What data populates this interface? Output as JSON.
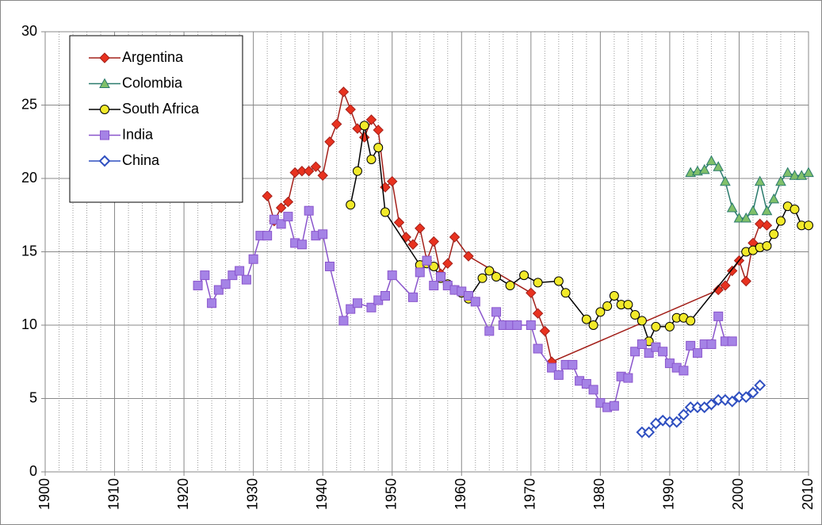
{
  "chart_data": {
    "type": "line",
    "xlim": [
      1900,
      2010
    ],
    "xticks": [
      1900,
      1910,
      1920,
      1930,
      1940,
      1950,
      1960,
      1970,
      1980,
      1990,
      2000,
      2010
    ],
    "ylim": [
      0,
      30
    ],
    "yticks": [
      0,
      5,
      10,
      15,
      20,
      25,
      30
    ],
    "grid": true,
    "legend": "upper left",
    "series": [
      {
        "name": "Argentina",
        "color": "#a3201a",
        "marker": "diamond",
        "marker_color": "#e8321f",
        "x": [
          1932,
          1933,
          1934,
          1935,
          1936,
          1937,
          1938,
          1939,
          1940,
          1941,
          1942,
          1943,
          1944,
          1945,
          1946,
          1947,
          1948,
          1949,
          1950,
          1951,
          1952,
          1953,
          1954,
          1955,
          1956,
          1957,
          1958,
          1959,
          1961,
          1970,
          1971,
          1972,
          1973,
          1997,
          1998,
          1999,
          2000,
          2001,
          2002,
          2003,
          2004
        ],
        "values": [
          18.8,
          17.1,
          18.0,
          18.4,
          20.4,
          20.5,
          20.5,
          20.8,
          20.2,
          22.5,
          23.7,
          25.9,
          24.7,
          23.4,
          22.8,
          24.0,
          23.3,
          19.4,
          19.8,
          17.0,
          16.0,
          15.5,
          16.6,
          14.4,
          15.7,
          13.5,
          14.2,
          16.0,
          14.7,
          12.2,
          10.8,
          9.6,
          7.5,
          12.4,
          12.7,
          13.7,
          14.4,
          13.0,
          15.6,
          16.9,
          16.8
        ]
      },
      {
        "name": "Colombia",
        "color": "#2a7a6c",
        "marker": "triangle",
        "marker_color": "#80c06a",
        "x": [
          1993,
          1994,
          1995,
          1996,
          1997,
          1998,
          1999,
          2000,
          2001,
          2002,
          2003,
          2004,
          2005,
          2006,
          2007,
          2008,
          2009,
          2010
        ],
        "values": [
          20.4,
          20.5,
          20.6,
          21.2,
          20.8,
          19.8,
          18.0,
          17.3,
          17.3,
          17.8,
          19.8,
          17.8,
          18.6,
          19.8,
          20.4,
          20.2,
          20.2,
          20.4
        ]
      },
      {
        "name": "South Africa",
        "color": "#000000",
        "marker": "circle",
        "marker_color": "#f2ea2a",
        "x": [
          1944,
          1945,
          1946,
          1947,
          1948,
          1949,
          1954,
          1955,
          1956,
          1957,
          1958,
          1959,
          1960,
          1961,
          1963,
          1964,
          1965,
          1967,
          1969,
          1971,
          1974,
          1975,
          1978,
          1979,
          1980,
          1981,
          1982,
          1983,
          1984,
          1985,
          1986,
          1987,
          1988,
          1990,
          1991,
          1992,
          1993,
          2001,
          2002,
          2003,
          2004,
          2005,
          2006,
          2007,
          2008,
          2009,
          2010
        ],
        "values": [
          18.2,
          20.5,
          23.6,
          21.3,
          22.1,
          17.7,
          14.1,
          14.2,
          14.0,
          13.2,
          12.8,
          12.4,
          12.2,
          11.8,
          13.2,
          13.7,
          13.3,
          12.7,
          13.4,
          12.9,
          13.0,
          12.2,
          10.4,
          10.0,
          10.9,
          11.3,
          12.0,
          11.4,
          11.4,
          10.7,
          10.3,
          8.9,
          9.9,
          9.9,
          10.5,
          10.5,
          10.3,
          15.0,
          15.1,
          15.3,
          15.4,
          16.2,
          17.1,
          18.1,
          17.9,
          16.8,
          16.8
        ]
      },
      {
        "name": "India",
        "color": "#8a55cc",
        "marker": "square",
        "marker_color": "#a583e6",
        "x": [
          1922,
          1923,
          1924,
          1925,
          1926,
          1927,
          1928,
          1929,
          1930,
          1931,
          1932,
          1933,
          1934,
          1935,
          1936,
          1937,
          1938,
          1939,
          1940,
          1941,
          1943,
          1944,
          1945,
          1947,
          1948,
          1949,
          1950,
          1953,
          1954,
          1955,
          1956,
          1957,
          1958,
          1959,
          1960,
          1961,
          1962,
          1964,
          1965,
          1966,
          1967,
          1968,
          1970,
          1971,
          1973,
          1974,
          1975,
          1976,
          1977,
          1978,
          1979,
          1980,
          1981,
          1982,
          1983,
          1984,
          1985,
          1986,
          1987,
          1988,
          1989,
          1990,
          1991,
          1992,
          1993,
          1994,
          1995,
          1996,
          1997,
          1998,
          1999
        ],
        "values": [
          12.7,
          13.4,
          11.5,
          12.4,
          12.8,
          13.4,
          13.7,
          13.1,
          14.5,
          16.1,
          16.1,
          17.2,
          16.9,
          17.4,
          15.6,
          15.5,
          17.8,
          16.1,
          16.2,
          14.0,
          10.3,
          11.1,
          11.5,
          11.2,
          11.7,
          12.0,
          13.4,
          11.9,
          13.6,
          14.4,
          12.7,
          13.3,
          12.7,
          12.4,
          12.3,
          12.0,
          11.6,
          9.6,
          10.9,
          10.0,
          10.0,
          10.0,
          10.0,
          8.4,
          7.1,
          6.6,
          7.3,
          7.3,
          6.2,
          6.0,
          5.6,
          4.7,
          4.4,
          4.5,
          6.5,
          6.4,
          8.2,
          8.7,
          8.1,
          8.5,
          8.2,
          7.4,
          7.1,
          6.9,
          8.6,
          8.1,
          8.7,
          8.7,
          10.6,
          8.9,
          8.9
        ]
      },
      {
        "name": "China",
        "color": "#2f4fc0",
        "marker": "open-diamond",
        "marker_color": "#ffffff",
        "x": [
          1986,
          1987,
          1988,
          1989,
          1990,
          1991,
          1992,
          1993,
          1994,
          1995,
          1996,
          1997,
          1998,
          1999,
          2000,
          2001,
          2002,
          2003
        ],
        "values": [
          2.7,
          2.7,
          3.3,
          3.5,
          3.4,
          3.4,
          3.9,
          4.4,
          4.4,
          4.4,
          4.6,
          4.9,
          4.9,
          4.8,
          5.1,
          5.1,
          5.4,
          5.9
        ]
      }
    ]
  }
}
